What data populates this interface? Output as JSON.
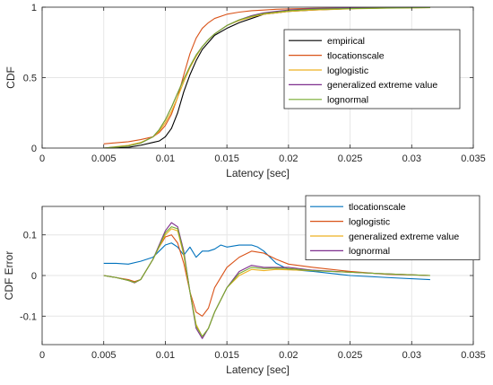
{
  "chart_data": [
    {
      "type": "line",
      "xlabel": "Latency [sec]",
      "ylabel": "CDF",
      "xlim": [
        0,
        0.035
      ],
      "ylim": [
        0,
        1
      ],
      "xticks": [
        0,
        0.005,
        0.01,
        0.015,
        0.02,
        0.025,
        0.03,
        0.035
      ],
      "xtick_labels": [
        "0",
        "0.005",
        "0.01",
        "0.015",
        "0.02",
        "0.025",
        "0.03",
        "0.035"
      ],
      "yticks": [
        0,
        0.5,
        1
      ],
      "ytick_labels": [
        "0",
        "0.5",
        "1"
      ],
      "grid": true,
      "legend_position": "top-right",
      "series": [
        {
          "name": "empirical",
          "color": "#000000",
          "x": [
            0.005,
            0.007,
            0.008,
            0.009,
            0.0095,
            0.01,
            0.0105,
            0.011,
            0.0115,
            0.012,
            0.0125,
            0.013,
            0.0135,
            0.014,
            0.015,
            0.016,
            0.017,
            0.018,
            0.019,
            0.02,
            0.022,
            0.025,
            0.028,
            0.0315
          ],
          "y": [
            0.0,
            0.005,
            0.02,
            0.04,
            0.05,
            0.08,
            0.14,
            0.25,
            0.4,
            0.52,
            0.62,
            0.7,
            0.75,
            0.8,
            0.85,
            0.89,
            0.92,
            0.95,
            0.96,
            0.97,
            0.98,
            0.99,
            0.995,
            1.0
          ]
        },
        {
          "name": "tlocationscale",
          "color": "#D95319",
          "x": [
            0.005,
            0.007,
            0.008,
            0.009,
            0.0095,
            0.01,
            0.0105,
            0.011,
            0.0115,
            0.012,
            0.0125,
            0.013,
            0.0135,
            0.014,
            0.015,
            0.016,
            0.017,
            0.018,
            0.019,
            0.02,
            0.022,
            0.025,
            0.028,
            0.0315
          ],
          "y": [
            0.03,
            0.045,
            0.06,
            0.08,
            0.11,
            0.16,
            0.24,
            0.36,
            0.52,
            0.67,
            0.78,
            0.85,
            0.89,
            0.92,
            0.95,
            0.965,
            0.975,
            0.98,
            0.985,
            0.988,
            0.992,
            0.994,
            0.996,
            0.997
          ]
        },
        {
          "name": "loglogistic",
          "color": "#EDB120",
          "x": [
            0.005,
            0.007,
            0.008,
            0.009,
            0.0095,
            0.01,
            0.0105,
            0.011,
            0.0115,
            0.012,
            0.0125,
            0.013,
            0.0135,
            0.014,
            0.015,
            0.016,
            0.017,
            0.018,
            0.019,
            0.02,
            0.022,
            0.025,
            0.028,
            0.0315
          ],
          "y": [
            0.0,
            0.02,
            0.04,
            0.08,
            0.12,
            0.18,
            0.26,
            0.36,
            0.47,
            0.57,
            0.65,
            0.72,
            0.77,
            0.81,
            0.87,
            0.905,
            0.93,
            0.95,
            0.96,
            0.97,
            0.98,
            0.988,
            0.993,
            0.996
          ]
        },
        {
          "name": "generalized extreme value",
          "color": "#7E2F8E",
          "x": [
            0.005,
            0.007,
            0.008,
            0.009,
            0.0095,
            0.01,
            0.0105,
            0.011,
            0.0115,
            0.012,
            0.0125,
            0.013,
            0.0135,
            0.014,
            0.015,
            0.016,
            0.017,
            0.018,
            0.019,
            0.02,
            0.022,
            0.025,
            0.028,
            0.0315
          ],
          "y": [
            0.0,
            0.015,
            0.035,
            0.08,
            0.13,
            0.2,
            0.29,
            0.39,
            0.49,
            0.58,
            0.66,
            0.72,
            0.77,
            0.81,
            0.87,
            0.91,
            0.94,
            0.96,
            0.97,
            0.98,
            0.99,
            0.995,
            0.998,
            1.0
          ]
        },
        {
          "name": "lognormal",
          "color": "#77AC30",
          "x": [
            0.005,
            0.007,
            0.008,
            0.009,
            0.0095,
            0.01,
            0.0105,
            0.011,
            0.0115,
            0.012,
            0.0125,
            0.013,
            0.0135,
            0.014,
            0.015,
            0.016,
            0.017,
            0.018,
            0.019,
            0.02,
            0.022,
            0.025,
            0.028,
            0.0315
          ],
          "y": [
            0.0,
            0.015,
            0.035,
            0.08,
            0.13,
            0.2,
            0.29,
            0.39,
            0.49,
            0.58,
            0.66,
            0.72,
            0.77,
            0.81,
            0.87,
            0.91,
            0.935,
            0.955,
            0.965,
            0.975,
            0.985,
            0.99,
            0.994,
            0.997
          ]
        }
      ]
    },
    {
      "type": "line",
      "xlabel": "Latency [sec]",
      "ylabel": "CDF Error",
      "xlim": [
        0,
        0.035
      ],
      "ylim": [
        -0.17,
        0.17
      ],
      "xticks": [
        0,
        0.005,
        0.01,
        0.015,
        0.02,
        0.025,
        0.03,
        0.035
      ],
      "xtick_labels": [
        "0",
        "0.005",
        "0.01",
        "0.015",
        "0.02",
        "0.025",
        "0.03",
        "0.035"
      ],
      "yticks": [
        -0.1,
        0,
        0.1
      ],
      "ytick_labels": [
        "-0.1",
        "0",
        "0.1"
      ],
      "grid": true,
      "legend_position": "top-right",
      "series": [
        {
          "name": "tlocationscale",
          "color": "#0072BD",
          "x": [
            0.005,
            0.006,
            0.007,
            0.008,
            0.009,
            0.0095,
            0.01,
            0.0105,
            0.011,
            0.0115,
            0.012,
            0.0125,
            0.013,
            0.0135,
            0.014,
            0.0145,
            0.015,
            0.016,
            0.017,
            0.0175,
            0.018,
            0.019,
            0.02,
            0.022,
            0.025,
            0.028,
            0.0315
          ],
          "y": [
            0.03,
            0.03,
            0.028,
            0.035,
            0.045,
            0.06,
            0.075,
            0.08,
            0.07,
            0.05,
            0.07,
            0.045,
            0.06,
            0.06,
            0.065,
            0.075,
            0.07,
            0.075,
            0.075,
            0.07,
            0.06,
            0.03,
            0.015,
            0.01,
            0.0,
            -0.005,
            -0.01
          ]
        },
        {
          "name": "loglogistic",
          "color": "#D95319",
          "x": [
            0.005,
            0.006,
            0.007,
            0.0075,
            0.008,
            0.009,
            0.0095,
            0.01,
            0.0105,
            0.011,
            0.0115,
            0.012,
            0.0125,
            0.013,
            0.0135,
            0.014,
            0.015,
            0.016,
            0.017,
            0.018,
            0.019,
            0.02,
            0.022,
            0.025,
            0.028,
            0.0315
          ],
          "y": [
            0.0,
            -0.005,
            -0.01,
            -0.015,
            -0.01,
            0.04,
            0.07,
            0.095,
            0.1,
            0.08,
            0.03,
            -0.04,
            -0.09,
            -0.1,
            -0.08,
            -0.03,
            0.02,
            0.045,
            0.06,
            0.055,
            0.04,
            0.028,
            0.02,
            0.01,
            0.003,
            0.0
          ]
        },
        {
          "name": "generalized extreme value",
          "color": "#EDB120",
          "x": [
            0.005,
            0.006,
            0.007,
            0.0075,
            0.008,
            0.009,
            0.0095,
            0.01,
            0.0105,
            0.011,
            0.0115,
            0.012,
            0.0125,
            0.013,
            0.0135,
            0.014,
            0.015,
            0.016,
            0.017,
            0.018,
            0.019,
            0.02,
            0.022,
            0.025,
            0.028,
            0.0315
          ],
          "y": [
            0.0,
            -0.005,
            -0.012,
            -0.018,
            -0.01,
            0.04,
            0.07,
            0.1,
            0.115,
            0.11,
            0.05,
            -0.04,
            -0.12,
            -0.15,
            -0.13,
            -0.09,
            -0.03,
            0.0,
            0.015,
            0.012,
            0.015,
            0.014,
            0.012,
            0.008,
            0.004,
            0.0
          ]
        },
        {
          "name": "lognormal",
          "color": "#7E2F8E",
          "x": [
            0.005,
            0.006,
            0.007,
            0.0075,
            0.008,
            0.009,
            0.0095,
            0.01,
            0.0105,
            0.011,
            0.0115,
            0.012,
            0.0125,
            0.013,
            0.0135,
            0.014,
            0.015,
            0.016,
            0.017,
            0.018,
            0.019,
            0.02,
            0.022,
            0.025,
            0.028,
            0.0315
          ],
          "y": [
            0.0,
            -0.005,
            -0.012,
            -0.018,
            -0.01,
            0.04,
            0.075,
            0.11,
            0.13,
            0.12,
            0.06,
            -0.04,
            -0.13,
            -0.155,
            -0.13,
            -0.09,
            -0.03,
            0.01,
            0.025,
            0.02,
            0.02,
            0.02,
            0.013,
            0.008,
            0.004,
            0.0
          ]
        },
        {
          "name": "green",
          "color": "#77AC30",
          "hidden_in_legend": true,
          "x": [
            0.005,
            0.006,
            0.007,
            0.0075,
            0.008,
            0.009,
            0.0095,
            0.01,
            0.0105,
            0.011,
            0.0115,
            0.012,
            0.0125,
            0.013,
            0.0135,
            0.014,
            0.015,
            0.016,
            0.017,
            0.018,
            0.019,
            0.02,
            0.022,
            0.025,
            0.028,
            0.0315
          ],
          "y": [
            0.0,
            -0.005,
            -0.012,
            -0.017,
            -0.01,
            0.04,
            0.072,
            0.105,
            0.12,
            0.115,
            0.055,
            -0.04,
            -0.125,
            -0.15,
            -0.13,
            -0.09,
            -0.03,
            0.005,
            0.02,
            0.017,
            0.018,
            0.017,
            0.012,
            0.008,
            0.004,
            0.0
          ]
        }
      ]
    }
  ]
}
